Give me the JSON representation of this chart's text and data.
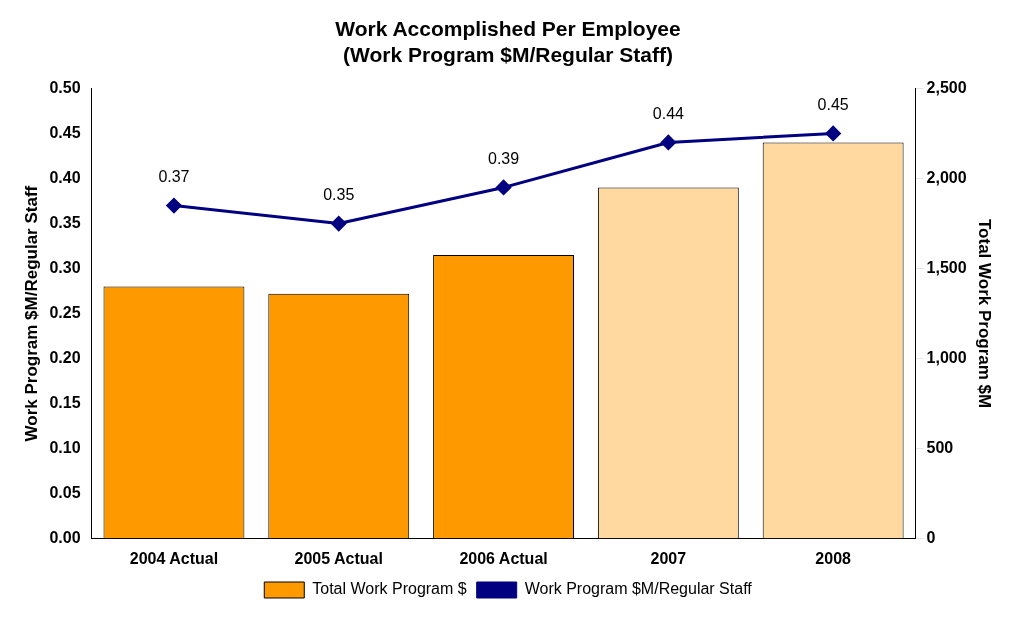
{
  "chart_data": {
    "type": "bar",
    "title": [
      "Work Accomplished Per Employee",
      "(Work Program $M/Regular Staff)"
    ],
    "categories": [
      "2004 Actual",
      "2005 Actual",
      "2006 Actual",
      "2007",
      "2008"
    ],
    "series": [
      {
        "name": "Total Work Program $",
        "axis": "y2",
        "color": "#ff9900",
        "colors": [
          "#ff9900",
          "#ff9900",
          "#ff9900",
          "#ffd9a0",
          "#ffd9a0"
        ],
        "values": [
          1400,
          1360,
          1575,
          1950,
          2200
        ]
      },
      {
        "name": "Work Program $M/Regular Staff",
        "type": "line",
        "axis": "y",
        "color": "#000080",
        "marker": "diamond",
        "values": [
          0.37,
          0.35,
          0.39,
          0.44,
          0.45
        ],
        "value_labels": [
          "0.37",
          "0.35",
          "0.39",
          "0.44",
          "0.45"
        ]
      }
    ],
    "ylabel": "Work Program $M/Regular Staff",
    "y2label": "Total Work Program $M",
    "ylim": [
      0,
      0.5
    ],
    "yticks": [
      {
        "value": 0,
        "label": "0.00"
      },
      0.05,
      {
        "value": 0.1,
        "label": "0.10"
      },
      0.15,
      {
        "value": 0.2,
        "label": "0.20"
      },
      0.25,
      {
        "value": 0.3,
        "label": "0.30"
      },
      0.35,
      {
        "value": 0.4,
        "label": "0.40"
      },
      0.45,
      {
        "value": 0.5,
        "label": "0.50"
      }
    ],
    "y2lim": [
      0,
      2500
    ],
    "y2ticks": [
      0,
      500,
      {
        "value": 1000,
        "label": "1,000"
      },
      {
        "value": 1500,
        "label": "1,500"
      },
      {
        "value": 2000,
        "label": "2,000"
      },
      {
        "value": 2500,
        "label": "2,500"
      }
    ],
    "grid": false,
    "legend": "bottom"
  }
}
